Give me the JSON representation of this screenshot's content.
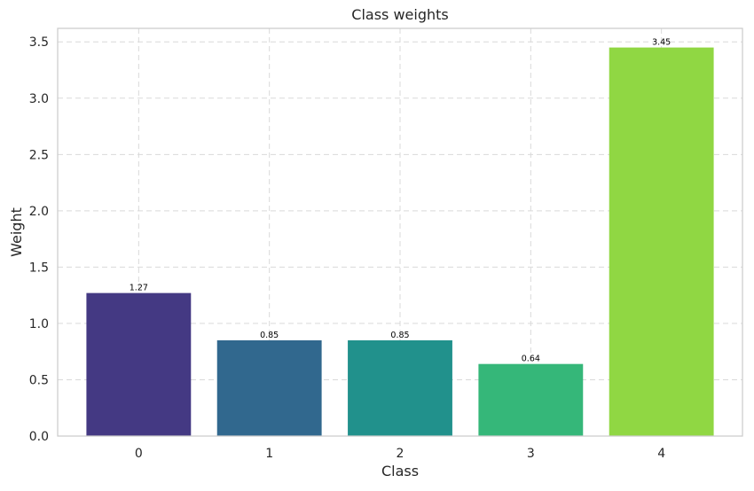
{
  "chart_data": {
    "type": "bar",
    "title": "Class weights",
    "xlabel": "Class",
    "ylabel": "Weight",
    "categories": [
      "0",
      "1",
      "2",
      "3",
      "4"
    ],
    "values": [
      1.27,
      0.85,
      0.85,
      0.64,
      3.45
    ],
    "value_labels": [
      "1.27",
      "0.85",
      "0.85",
      "0.64",
      "3.45"
    ],
    "colors": [
      "#443983",
      "#31688e",
      "#21918c",
      "#35b779",
      "#90d743"
    ],
    "ylim": [
      0,
      3.62
    ],
    "yticks": [
      0.0,
      0.5,
      1.0,
      1.5,
      2.0,
      2.5,
      3.0,
      3.5
    ],
    "ytick_labels": [
      "0.0",
      "0.5",
      "1.0",
      "1.5",
      "2.0",
      "2.5",
      "3.0",
      "3.5"
    ],
    "grid": true,
    "legend": false
  }
}
